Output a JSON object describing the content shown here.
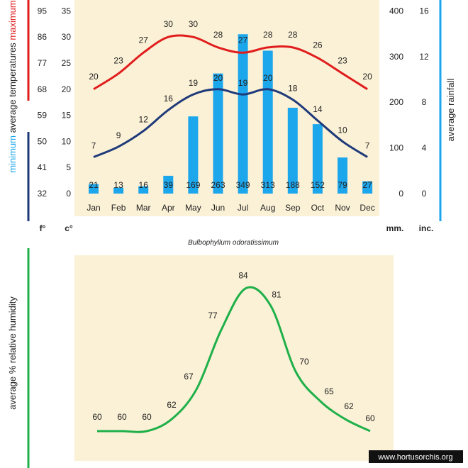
{
  "months": [
    "Jan",
    "Feb",
    "Mar",
    "Apr",
    "May",
    "Jun",
    "Jul",
    "Aug",
    "Sep",
    "Oct",
    "Nov",
    "Dec"
  ],
  "colors": {
    "max": "#e01e1e",
    "min": "#1f3a7a",
    "rain": "#1ca6ec",
    "humidity": "#1fb04a",
    "panel": "#fbf1d6"
  },
  "chart_data": [
    {
      "type": "line",
      "x": [
        "Jan",
        "Feb",
        "Mar",
        "Apr",
        "May",
        "Jun",
        "Jul",
        "Aug",
        "Sep",
        "Oct",
        "Nov",
        "Dec"
      ],
      "series": [
        {
          "name": "maximum",
          "values": [
            20,
            23,
            27,
            30,
            30,
            28,
            27,
            28,
            28,
            26,
            23,
            20
          ]
        },
        {
          "name": "minimum",
          "values": [
            7,
            9,
            12,
            16,
            19,
            20,
            19,
            20,
            18,
            14,
            10,
            7
          ]
        }
      ],
      "ylabel": "average temperatures",
      "ylim": [
        0,
        35
      ],
      "celsius_ticks": [
        "0",
        "5",
        "10",
        "15",
        "20",
        "25",
        "30",
        "35"
      ],
      "fahrenheit_ticks": [
        "32",
        "41",
        "50",
        "59",
        "68",
        "77",
        "86",
        "95"
      ],
      "unit_f": "f°",
      "unit_c": "c°"
    },
    {
      "type": "bar",
      "categories": [
        "Jan",
        "Feb",
        "Mar",
        "Apr",
        "May",
        "Jun",
        "Jul",
        "Aug",
        "Sep",
        "Oct",
        "Nov",
        "Dec"
      ],
      "values": [
        21,
        13,
        16,
        39,
        169,
        263,
        349,
        313,
        188,
        152,
        79,
        27
      ],
      "ylabel": "average rainfall",
      "ylim": [
        0,
        400
      ],
      "mm_ticks": [
        "0",
        "100",
        "200",
        "300",
        "400"
      ],
      "inch_ticks": [
        "0",
        "4",
        "8",
        "12",
        "16"
      ],
      "unit_mm": "mm.",
      "unit_inch": "inc."
    },
    {
      "type": "line",
      "series": [
        {
          "name": "",
          "values": [
            60,
            60,
            60,
            62,
            67,
            77,
            84,
            81,
            70,
            65,
            62,
            60
          ]
        }
      ],
      "ylabel": "average % relative humidity",
      "ylim": [
        55,
        90
      ]
    }
  ],
  "text": {
    "max_label": "maximum",
    "min_label": "minimum",
    "temps_label": "average temperatures",
    "species": "Bulbophyllum odoratissimum",
    "watermark": "www.hortusorchis.org"
  }
}
